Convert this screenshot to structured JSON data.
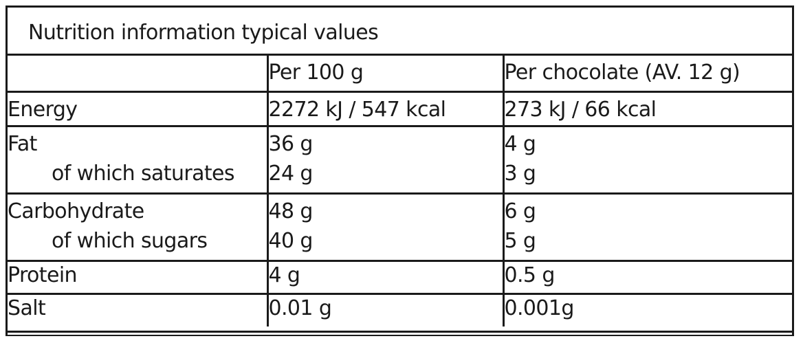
{
  "title": "Nutrition information typical values",
  "columns": [
    "",
    "Per 100 g",
    "Per chocolate (AV. 12 g)"
  ],
  "rows": [
    {
      "label": "Energy",
      "per100": "2272 kJ / 547 kcal",
      "perPiece": "273 kJ / 66 kcal"
    },
    {
      "label": "Fat",
      "per100": "36 g",
      "perPiece": "4 g"
    },
    {
      "label": "of which saturates",
      "per100": "24 g",
      "perPiece": "3 g"
    },
    {
      "label": "Carbohydrate",
      "per100": "48 g",
      "perPiece": "6 g"
    },
    {
      "label": "of which sugars",
      "per100": "40 g",
      "perPiece": "5 g"
    },
    {
      "label": "Protein",
      "per100": "4 g",
      "perPiece": "0.5 g"
    },
    {
      "label": "Salt",
      "per100": "0.01 g",
      "perPiece": "0.001g"
    }
  ]
}
